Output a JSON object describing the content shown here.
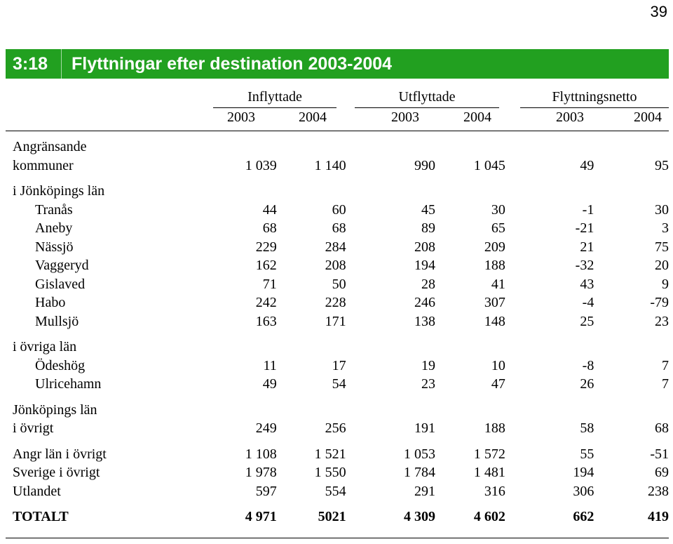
{
  "page_number": "39",
  "title": {
    "number": "3:18",
    "text": "Flyttningar efter destination 2003-2004"
  },
  "column_groups": [
    "Inflyttade",
    "Utflyttade",
    "Flyttningsnetto"
  ],
  "years": [
    "2003",
    "2004",
    "2003",
    "2004",
    "2003",
    "2004"
  ],
  "rows": {
    "angransande_line1": "Angränsande",
    "angransande": {
      "label": "kommuner",
      "values": [
        "1 039",
        "1 140",
        "990",
        "1 045",
        "49",
        "95"
      ]
    },
    "jkpg_lan_header": "i Jönköpings län",
    "jkpg_lan": [
      {
        "label": "Tranås",
        "values": [
          "44",
          "60",
          "45",
          "30",
          "-1",
          "30"
        ]
      },
      {
        "label": "Aneby",
        "values": [
          "68",
          "68",
          "89",
          "65",
          "-21",
          "3"
        ]
      },
      {
        "label": "Nässjö",
        "values": [
          "229",
          "284",
          "208",
          "209",
          "21",
          "75"
        ]
      },
      {
        "label": "Vaggeryd",
        "values": [
          "162",
          "208",
          "194",
          "188",
          "-32",
          "20"
        ]
      },
      {
        "label": "Gislaved",
        "values": [
          "71",
          "50",
          "28",
          "41",
          "43",
          "9"
        ]
      },
      {
        "label": "Habo",
        "values": [
          "242",
          "228",
          "246",
          "307",
          "-4",
          "-79"
        ]
      },
      {
        "label": "Mullsjö",
        "values": [
          "163",
          "171",
          "138",
          "148",
          "25",
          "23"
        ]
      }
    ],
    "ovriga_lan_header": "i övriga län",
    "ovriga_lan": [
      {
        "label": "Ödeshög",
        "values": [
          "11",
          "17",
          "19",
          "10",
          "-8",
          "7"
        ]
      },
      {
        "label": "Ulricehamn",
        "values": [
          "49",
          "54",
          "23",
          "47",
          "26",
          "7"
        ]
      }
    ],
    "jkpg_ovrigt_line1": "Jönköpings län",
    "jkpg_ovrigt": {
      "label": "i övrigt",
      "values": [
        "249",
        "256",
        "191",
        "188",
        "58",
        "68"
      ]
    },
    "other": [
      {
        "label": "Angr län i övrigt",
        "values": [
          "1 108",
          "1 521",
          "1 053",
          "1 572",
          "55",
          "-51"
        ]
      },
      {
        "label": "Sverige i övrigt",
        "values": [
          "1 978",
          "1 550",
          "1 784",
          "1 481",
          "194",
          "69"
        ]
      },
      {
        "label": "Utlandet",
        "values": [
          "597",
          "554",
          "291",
          "316",
          "306",
          "238"
        ]
      }
    ],
    "total": {
      "label": "TOTALT",
      "values": [
        "4 971",
        "5021",
        "4 309",
        "4 602",
        "662",
        "419"
      ]
    }
  }
}
